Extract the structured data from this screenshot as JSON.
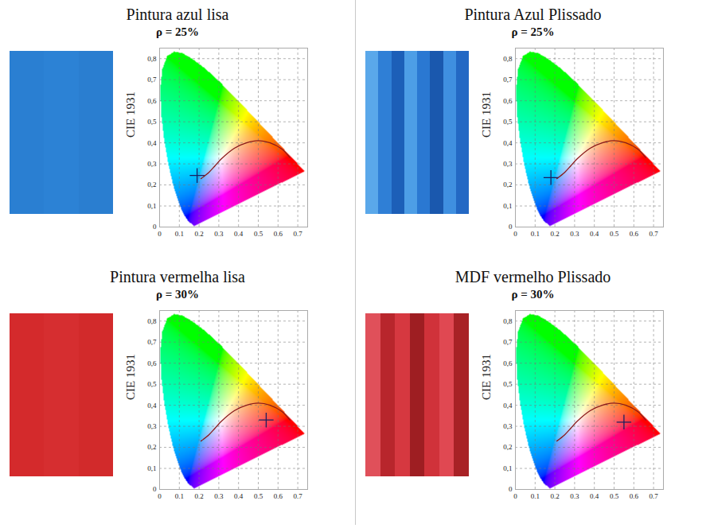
{
  "chart_data": [
    {
      "type": "scatter",
      "title": "Pintura azul lisa",
      "subtitle": "ρ = 25%",
      "ylabel": "CIE 1931",
      "swatch": {
        "colors": [
          "#2a7fd2",
          "#2c82d5",
          "#2a7ed0"
        ]
      },
      "xlim": [
        0,
        0.75
      ],
      "ylim": [
        0,
        0.85
      ],
      "xticks": [
        0,
        0.1,
        0.2,
        0.3,
        0.4,
        0.5,
        0.6,
        0.7
      ],
      "yticks": [
        {
          "value": 0,
          "label": "0"
        },
        {
          "value": 0.1,
          "label": "0,1"
        },
        {
          "value": 0.2,
          "label": "0,2"
        },
        {
          "value": 0.3,
          "label": "0,3"
        },
        {
          "value": 0.4,
          "label": "0,4"
        },
        {
          "value": 0.5,
          "label": "0,5"
        },
        {
          "value": 0.6,
          "label": "0,6"
        },
        {
          "value": 0.7,
          "label": "0,7"
        },
        {
          "value": 0.8,
          "label": "0,8"
        }
      ],
      "grid": true,
      "series": [
        {
          "type": "area",
          "x": [
            0.1741,
            0.144,
            0.1241,
            0.1096,
            0.0913,
            0.0687,
            0.0454,
            0.0235,
            0.0082,
            0.0039,
            0.0139,
            0.0389,
            0.0743,
            0.1142,
            0.1547,
            0.2296,
            0.3016,
            0.3731,
            0.4441,
            0.5125,
            0.5752,
            0.627,
            0.6915,
            0.7347
          ],
          "values": [
            0.005,
            0.0297,
            0.0578,
            0.0868,
            0.1327,
            0.2007,
            0.295,
            0.4127,
            0.5384,
            0.6548,
            0.7502,
            0.812,
            0.8338,
            0.8262,
            0.8059,
            0.7543,
            0.6923,
            0.6245,
            0.5547,
            0.4866,
            0.4242,
            0.3725,
            0.3083,
            0.2653
          ]
        },
        {
          "type": "line",
          "color": "#8b1a1a",
          "x": [
            0.21,
            0.25,
            0.28,
            0.313,
            0.38,
            0.44,
            0.5,
            0.56,
            0.62,
            0.66
          ],
          "values": [
            0.23,
            0.26,
            0.29,
            0.324,
            0.375,
            0.4,
            0.41,
            0.4,
            0.37,
            0.33
          ]
        },
        {
          "type": "scatter",
          "marker": "plus",
          "color": "#1b1f5e",
          "x": [
            0.19
          ],
          "values": [
            0.245
          ]
        }
      ]
    },
    {
      "type": "scatter",
      "title": "Pintura Azul Plissado",
      "subtitle": "ρ = 25%",
      "ylabel": "CIE 1931",
      "swatch": {
        "colors": [
          "#5aa8ea",
          "#2f7fd6",
          "#1c5fb8",
          "#4d9ee6",
          "#2a78d2",
          "#1a58ae",
          "#3f8fe0",
          "#2368c4"
        ]
      },
      "xlim": [
        0,
        0.75
      ],
      "ylim": [
        0,
        0.85
      ],
      "xticks": [
        0,
        0.1,
        0.2,
        0.3,
        0.4,
        0.5,
        0.6,
        0.7
      ],
      "yticks": [
        {
          "value": 0,
          "label": "0"
        },
        {
          "value": 0.1,
          "label": "0,1"
        },
        {
          "value": 0.2,
          "label": "0,2"
        },
        {
          "value": 0.3,
          "label": "0,3"
        },
        {
          "value": 0.4,
          "label": "0,4"
        },
        {
          "value": 0.5,
          "label": "0,5"
        },
        {
          "value": 0.6,
          "label": "0,6"
        },
        {
          "value": 0.7,
          "label": "0,7"
        },
        {
          "value": 0.8,
          "label": "0,8"
        }
      ],
      "grid": true,
      "series": [
        {
          "type": "area",
          "x": [
            0.1741,
            0.144,
            0.1241,
            0.1096,
            0.0913,
            0.0687,
            0.0454,
            0.0235,
            0.0082,
            0.0039,
            0.0139,
            0.0389,
            0.0743,
            0.1142,
            0.1547,
            0.2296,
            0.3016,
            0.3731,
            0.4441,
            0.5125,
            0.5752,
            0.627,
            0.6915,
            0.7347
          ],
          "values": [
            0.005,
            0.0297,
            0.0578,
            0.0868,
            0.1327,
            0.2007,
            0.295,
            0.4127,
            0.5384,
            0.6548,
            0.7502,
            0.812,
            0.8338,
            0.8262,
            0.8059,
            0.7543,
            0.6923,
            0.6245,
            0.5547,
            0.4866,
            0.4242,
            0.3725,
            0.3083,
            0.2653
          ]
        },
        {
          "type": "line",
          "color": "#8b1a1a",
          "x": [
            0.21,
            0.25,
            0.28,
            0.313,
            0.38,
            0.44,
            0.5,
            0.56,
            0.62,
            0.66
          ],
          "values": [
            0.23,
            0.26,
            0.29,
            0.324,
            0.375,
            0.4,
            0.41,
            0.4,
            0.37,
            0.33
          ]
        },
        {
          "type": "scatter",
          "marker": "plus",
          "color": "#1b1f5e",
          "x": [
            0.18
          ],
          "values": [
            0.235
          ]
        }
      ]
    },
    {
      "type": "scatter",
      "title": "Pintura vermelha lisa",
      "subtitle": "ρ = 30%",
      "ylabel": "CIE 1931",
      "swatch": {
        "colors": [
          "#d42a2c",
          "#d62e30",
          "#d22a2b"
        ]
      },
      "xlim": [
        0,
        0.75
      ],
      "ylim": [
        0,
        0.85
      ],
      "xticks": [
        0,
        0.1,
        0.2,
        0.3,
        0.4,
        0.5,
        0.6,
        0.7
      ],
      "yticks": [
        {
          "value": 0,
          "label": "0"
        },
        {
          "value": 0.1,
          "label": "0,1"
        },
        {
          "value": 0.2,
          "label": "0,2"
        },
        {
          "value": 0.3,
          "label": "0,3"
        },
        {
          "value": 0.4,
          "label": "0,4"
        },
        {
          "value": 0.5,
          "label": "0,5"
        },
        {
          "value": 0.6,
          "label": "0,6"
        },
        {
          "value": 0.7,
          "label": "0,7"
        },
        {
          "value": 0.8,
          "label": "0,8"
        }
      ],
      "grid": true,
      "series": [
        {
          "type": "area",
          "x": [
            0.1741,
            0.144,
            0.1241,
            0.1096,
            0.0913,
            0.0687,
            0.0454,
            0.0235,
            0.0082,
            0.0039,
            0.0139,
            0.0389,
            0.0743,
            0.1142,
            0.1547,
            0.2296,
            0.3016,
            0.3731,
            0.4441,
            0.5125,
            0.5752,
            0.627,
            0.6915,
            0.7347
          ],
          "values": [
            0.005,
            0.0297,
            0.0578,
            0.0868,
            0.1327,
            0.2007,
            0.295,
            0.4127,
            0.5384,
            0.6548,
            0.7502,
            0.812,
            0.8338,
            0.8262,
            0.8059,
            0.7543,
            0.6923,
            0.6245,
            0.5547,
            0.4866,
            0.4242,
            0.3725,
            0.3083,
            0.2653
          ]
        },
        {
          "type": "line",
          "color": "#8b1a1a",
          "x": [
            0.21,
            0.25,
            0.28,
            0.313,
            0.38,
            0.44,
            0.5,
            0.56,
            0.62,
            0.66
          ],
          "values": [
            0.23,
            0.26,
            0.29,
            0.324,
            0.375,
            0.4,
            0.41,
            0.4,
            0.37,
            0.33
          ]
        },
        {
          "type": "scatter",
          "marker": "plus",
          "color": "#1b1f5e",
          "x": [
            0.54
          ],
          "values": [
            0.33
          ]
        }
      ]
    },
    {
      "type": "scatter",
      "title": "MDF vermelho Plissado",
      "subtitle": "ρ = 30%",
      "ylabel": "CIE 1931",
      "swatch": {
        "colors": [
          "#e0505a",
          "#b8262c",
          "#d63840",
          "#9e1e22",
          "#d0323a",
          "#e04852",
          "#a82226"
        ]
      },
      "xlim": [
        0,
        0.75
      ],
      "ylim": [
        0,
        0.85
      ],
      "xticks": [
        0,
        0.1,
        0.2,
        0.3,
        0.4,
        0.5,
        0.6,
        0.7
      ],
      "yticks": [
        {
          "value": 0,
          "label": "0"
        },
        {
          "value": 0.1,
          "label": "0,1"
        },
        {
          "value": 0.2,
          "label": "0,2"
        },
        {
          "value": 0.3,
          "label": "0,3"
        },
        {
          "value": 0.4,
          "label": "0,4"
        },
        {
          "value": 0.5,
          "label": "0,5"
        },
        {
          "value": 0.6,
          "label": "0,6"
        },
        {
          "value": 0.7,
          "label": "0,7"
        },
        {
          "value": 0.8,
          "label": "0,8"
        }
      ],
      "grid": true,
      "series": [
        {
          "type": "area",
          "x": [
            0.1741,
            0.144,
            0.1241,
            0.1096,
            0.0913,
            0.0687,
            0.0454,
            0.0235,
            0.0082,
            0.0039,
            0.0139,
            0.0389,
            0.0743,
            0.1142,
            0.1547,
            0.2296,
            0.3016,
            0.3731,
            0.4441,
            0.5125,
            0.5752,
            0.627,
            0.6915,
            0.7347
          ],
          "values": [
            0.005,
            0.0297,
            0.0578,
            0.0868,
            0.1327,
            0.2007,
            0.295,
            0.4127,
            0.5384,
            0.6548,
            0.7502,
            0.812,
            0.8338,
            0.8262,
            0.8059,
            0.7543,
            0.6923,
            0.6245,
            0.5547,
            0.4866,
            0.4242,
            0.3725,
            0.3083,
            0.2653
          ]
        },
        {
          "type": "line",
          "color": "#8b1a1a",
          "x": [
            0.21,
            0.25,
            0.28,
            0.313,
            0.38,
            0.44,
            0.5,
            0.56,
            0.62,
            0.66
          ],
          "values": [
            0.23,
            0.26,
            0.29,
            0.324,
            0.375,
            0.4,
            0.41,
            0.4,
            0.37,
            0.33
          ]
        },
        {
          "type": "scatter",
          "marker": "plus",
          "color": "#1b1f5e",
          "x": [
            0.55
          ],
          "values": [
            0.32
          ]
        }
      ]
    }
  ]
}
